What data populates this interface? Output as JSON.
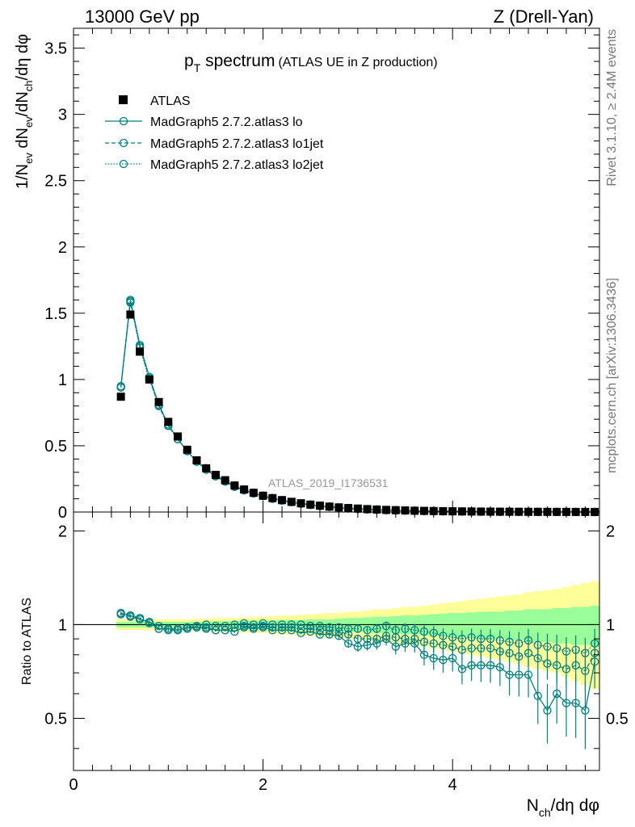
{
  "header": {
    "energy_label": "13000 GeV pp",
    "process_label": "Z (Drell-Yan)"
  },
  "side": {
    "rivet_label": "Rivet 3.1.10, ≥ 2.4M events",
    "source_label": "mcplots.cern.ch [arXiv:1306.3436]"
  },
  "chart_data": [
    {
      "type": "line",
      "panel": "main",
      "title_main": "p",
      "title_sub": "T",
      "title_rest": " spectrum",
      "title_note": "(ATLAS UE in Z production)",
      "analysis_label": "ATLAS_2019_I1736531",
      "ylabel": "1/N_ev dN_ev/dN_ch/dη dφ",
      "xlim": [
        0,
        5.55
      ],
      "ylim": [
        0,
        3.65
      ],
      "x_ticks": [
        0,
        2,
        4
      ],
      "y_ticks": [
        0,
        0.5,
        1,
        1.5,
        2,
        2.5,
        3,
        3.5
      ],
      "y_tick_labels": [
        "0",
        "0.5",
        "1",
        "1.5",
        "2",
        "2.5",
        "3",
        "3.5"
      ],
      "legend": [
        "ATLAS",
        "MadGraph5 2.7.2.atlas3 lo",
        "MadGraph5 2.7.2.atlas3 lo1jet",
        "MadGraph5 2.7.2.atlas3 lo2jet"
      ],
      "legend_position": "top-left",
      "x": [
        0.5,
        0.6,
        0.7,
        0.8,
        0.9,
        1.0,
        1.1,
        1.2,
        1.3,
        1.4,
        1.5,
        1.6,
        1.7,
        1.8,
        1.9,
        2.0,
        2.1,
        2.2,
        2.3,
        2.4,
        2.5,
        2.6,
        2.7,
        2.8,
        2.9,
        3.0,
        3.1,
        3.2,
        3.3,
        3.4,
        3.5,
        3.6,
        3.7,
        3.8,
        3.9,
        4.0,
        4.1,
        4.2,
        4.3,
        4.4,
        4.5,
        4.6,
        4.7,
        4.8,
        4.9,
        5.0,
        5.1,
        5.2,
        5.3,
        5.4,
        5.5
      ],
      "series": [
        {
          "name": "ATLAS",
          "style": "black-square",
          "values": [
            0.87,
            1.49,
            1.21,
            1.0,
            0.83,
            0.68,
            0.57,
            0.47,
            0.39,
            0.33,
            0.28,
            0.24,
            0.2,
            0.17,
            0.145,
            0.123,
            0.105,
            0.09,
            0.077,
            0.066,
            0.056,
            0.048,
            0.041,
            0.035,
            0.03,
            0.026,
            0.022,
            0.019,
            0.016,
            0.014,
            0.012,
            0.01,
            0.0087,
            0.0075,
            0.0064,
            0.0055,
            0.0047,
            0.004,
            0.0034,
            0.003,
            0.0026,
            0.0022,
            0.0019,
            0.0016,
            0.0014,
            0.0012,
            0.001,
            0.0009,
            0.0008,
            0.0007,
            0.0006
          ]
        },
        {
          "name": "MadGraph5 2.7.2.atlas3 lo",
          "style": "solid",
          "values": [
            0.95,
            1.6,
            1.26,
            1.02,
            0.81,
            0.66,
            0.55,
            0.46,
            0.38,
            0.32,
            0.27,
            0.23,
            0.19,
            0.163,
            0.14,
            0.12,
            0.1,
            0.086,
            0.074,
            0.062,
            0.053,
            0.045,
            0.038,
            0.032,
            0.026,
            0.022,
            0.019,
            0.016,
            0.014,
            0.012,
            0.0105,
            0.0085,
            0.0072,
            0.006,
            0.005,
            0.0043,
            0.0035,
            0.003,
            0.0026,
            0.0023,
            0.0019,
            0.0016,
            0.0013,
            0.0011,
            0.0009,
            0.0008,
            0.0007,
            0.0006,
            0.0005,
            0.0004,
            0.0003
          ]
        },
        {
          "name": "MadGraph5 2.7.2.atlas3 lo1jet",
          "style": "dashed",
          "values": [
            0.94,
            1.59,
            1.25,
            1.01,
            0.8,
            0.65,
            0.55,
            0.46,
            0.38,
            0.32,
            0.27,
            0.23,
            0.195,
            0.168,
            0.143,
            0.122,
            0.103,
            0.088,
            0.075,
            0.064,
            0.054,
            0.046,
            0.039,
            0.033,
            0.028,
            0.023,
            0.02,
            0.017,
            0.015,
            0.013,
            0.011,
            0.009,
            0.0078,
            0.0066,
            0.0056,
            0.0047,
            0.004,
            0.0034,
            0.0029,
            0.0025,
            0.0021,
            0.0018,
            0.0015,
            0.0013,
            0.0011,
            0.0009,
            0.0008,
            0.0007,
            0.0006,
            0.0005,
            0.0004
          ]
        },
        {
          "name": "MadGraph5 2.7.2.atlas3 lo2jet",
          "style": "dotted",
          "values": [
            0.94,
            1.58,
            1.24,
            1.0,
            0.8,
            0.65,
            0.55,
            0.46,
            0.38,
            0.33,
            0.28,
            0.235,
            0.2,
            0.17,
            0.146,
            0.124,
            0.106,
            0.09,
            0.077,
            0.066,
            0.056,
            0.048,
            0.041,
            0.035,
            0.03,
            0.025,
            0.022,
            0.019,
            0.016,
            0.014,
            0.012,
            0.01,
            0.0085,
            0.0072,
            0.0061,
            0.0052,
            0.0044,
            0.0037,
            0.0031,
            0.0027,
            0.0023,
            0.0019,
            0.0016,
            0.0014,
            0.0012,
            0.001,
            0.0009,
            0.0008,
            0.0007,
            0.0006,
            0.0005
          ]
        }
      ]
    },
    {
      "type": "line",
      "panel": "ratio",
      "ylabel": "Ratio to ATLAS",
      "xlabel": "N_ch/dη dφ",
      "xlim": [
        0,
        5.55
      ],
      "ylim": [
        0.34,
        2.3
      ],
      "x_ticks": [
        0,
        2,
        4
      ],
      "x_tick_labels": [
        "0",
        "2",
        "4"
      ],
      "y_ticks": [
        0.5,
        1,
        2
      ],
      "y_tick_labels": [
        "0.5",
        "1",
        "2"
      ],
      "x": [
        0.5,
        0.6,
        0.7,
        0.8,
        0.9,
        1.0,
        1.1,
        1.2,
        1.3,
        1.4,
        1.5,
        1.6,
        1.7,
        1.8,
        1.9,
        2.0,
        2.1,
        2.2,
        2.3,
        2.4,
        2.5,
        2.6,
        2.7,
        2.8,
        2.9,
        3.0,
        3.1,
        3.2,
        3.3,
        3.4,
        3.5,
        3.6,
        3.7,
        3.8,
        3.9,
        4.0,
        4.1,
        4.2,
        4.3,
        4.4,
        4.5,
        4.6,
        4.7,
        4.8,
        4.9,
        5.0,
        5.1,
        5.2,
        5.3,
        5.4,
        5.5
      ],
      "band_inner": [
        0.02,
        0.02,
        0.02,
        0.02,
        0.02,
        0.02,
        0.02,
        0.02,
        0.02,
        0.02,
        0.025,
        0.025,
        0.025,
        0.03,
        0.03,
        0.03,
        0.03,
        0.035,
        0.035,
        0.035,
        0.04,
        0.04,
        0.04,
        0.045,
        0.05,
        0.05,
        0.055,
        0.06,
        0.06,
        0.065,
        0.07,
        0.07,
        0.075,
        0.08,
        0.085,
        0.09,
        0.09,
        0.095,
        0.1,
        0.1,
        0.1,
        0.11,
        0.11,
        0.12,
        0.12,
        0.12,
        0.13,
        0.13,
        0.14,
        0.14,
        0.15
      ],
      "band_outer": [
        0.04,
        0.04,
        0.04,
        0.04,
        0.04,
        0.04,
        0.04,
        0.04,
        0.045,
        0.045,
        0.05,
        0.05,
        0.05,
        0.055,
        0.06,
        0.06,
        0.065,
        0.07,
        0.07,
        0.075,
        0.08,
        0.085,
        0.09,
        0.09,
        0.1,
        0.1,
        0.11,
        0.12,
        0.12,
        0.13,
        0.14,
        0.14,
        0.15,
        0.16,
        0.17,
        0.18,
        0.19,
        0.2,
        0.21,
        0.22,
        0.23,
        0.24,
        0.25,
        0.27,
        0.28,
        0.29,
        0.3,
        0.32,
        0.34,
        0.36,
        0.38
      ],
      "series": [
        {
          "name": "MadGraph5 2.7.2.atlas3 lo",
          "style": "solid",
          "values": [
            1.09,
            1.07,
            1.04,
            1.02,
            0.97,
            0.97,
            0.96,
            0.98,
            0.98,
            0.98,
            0.96,
            0.96,
            0.95,
            0.98,
            0.97,
            0.98,
            0.96,
            0.96,
            0.96,
            0.94,
            0.95,
            0.93,
            0.93,
            0.92,
            0.87,
            0.85,
            0.86,
            0.87,
            0.9,
            0.85,
            0.87,
            0.87,
            0.8,
            0.78,
            0.77,
            0.78,
            0.72,
            0.74,
            0.74,
            0.74,
            0.73,
            0.69,
            0.69,
            0.69,
            0.59,
            0.53,
            0.6,
            0.56,
            0.56,
            0.53,
            0.76
          ]
        },
        {
          "name": "MadGraph5 2.7.2.atlas3 lo1jet",
          "style": "dashed",
          "values": [
            1.08,
            1.06,
            1.04,
            1.01,
            0.97,
            0.96,
            0.96,
            0.97,
            0.98,
            0.97,
            0.96,
            0.96,
            0.98,
            0.99,
            0.98,
            0.99,
            0.98,
            0.98,
            0.98,
            0.97,
            0.97,
            0.96,
            0.96,
            0.95,
            0.93,
            0.9,
            0.9,
            0.9,
            0.92,
            0.91,
            0.9,
            0.9,
            0.88,
            0.87,
            0.86,
            0.85,
            0.83,
            0.84,
            0.84,
            0.84,
            0.82,
            0.81,
            0.79,
            0.81,
            0.78,
            0.75,
            0.74,
            0.72,
            0.74,
            0.71,
            0.81
          ]
        },
        {
          "name": "MadGraph5 2.7.2.atlas3 lo2jet",
          "style": "dotted",
          "values": [
            1.08,
            1.07,
            1.05,
            1.02,
            0.99,
            0.97,
            0.97,
            0.98,
            0.99,
            1.0,
            0.99,
            0.99,
            1.0,
            1.01,
            1.0,
            1.01,
            1.0,
            1.0,
            1.0,
            1.0,
            0.99,
            0.99,
            0.98,
            0.98,
            0.97,
            0.97,
            0.96,
            0.97,
            0.99,
            0.96,
            0.97,
            0.96,
            0.95,
            0.94,
            0.92,
            0.91,
            0.9,
            0.91,
            0.9,
            0.9,
            0.89,
            0.88,
            0.87,
            0.89,
            0.86,
            0.85,
            0.84,
            0.82,
            0.83,
            0.81,
            0.87
          ]
        }
      ]
    }
  ]
}
